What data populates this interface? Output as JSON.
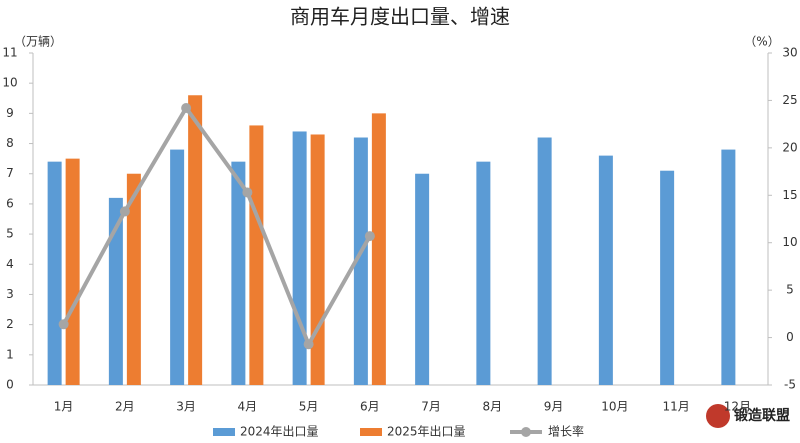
{
  "chart_data": {
    "type": "bar-line",
    "title": "商用车月度出口量、增速",
    "y_label": "（万辆）",
    "y2_label": "（%）",
    "categories": [
      "1月",
      "2月",
      "3月",
      "4月",
      "5月",
      "6月",
      "7月",
      "8月",
      "9月",
      "10月",
      "11月",
      "12月"
    ],
    "series": [
      {
        "name": "2024年出口量",
        "type": "bar",
        "color": "#5b9bd5",
        "values": [
          7.4,
          6.2,
          7.8,
          7.4,
          8.4,
          8.2,
          7.0,
          7.4,
          8.2,
          7.6,
          7.1,
          7.8
        ]
      },
      {
        "name": "2025年出口量",
        "type": "bar",
        "color": "#ed7d31",
        "values": [
          7.5,
          7.0,
          9.6,
          8.6,
          8.3,
          9.0,
          null,
          null,
          null,
          null,
          null,
          null
        ]
      },
      {
        "name": "增长率",
        "type": "line",
        "axis": "y2",
        "color": "#a5a5a5",
        "values": [
          1.4,
          13.3,
          24.2,
          15.3,
          -0.7,
          10.7,
          null,
          null,
          null,
          null,
          null,
          null
        ]
      }
    ],
    "ylim": [
      0,
      11
    ],
    "yticks": [
      0,
      1,
      2,
      3,
      4,
      5,
      6,
      7,
      8,
      9,
      10,
      11
    ],
    "y2lim": [
      -5,
      30
    ],
    "y2ticks": [
      -5,
      0,
      5,
      10,
      15,
      20,
      25,
      30
    ],
    "legend": "bottom",
    "grid": false
  },
  "watermark": "锻造联盟"
}
